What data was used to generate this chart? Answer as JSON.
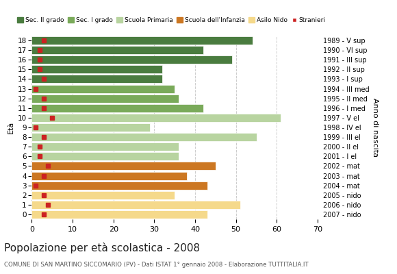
{
  "ages": [
    0,
    1,
    2,
    3,
    4,
    5,
    6,
    7,
    8,
    9,
    10,
    11,
    12,
    13,
    14,
    15,
    16,
    17,
    18
  ],
  "bar_values": [
    43,
    51,
    35,
    43,
    38,
    45,
    36,
    36,
    55,
    29,
    61,
    42,
    36,
    35,
    32,
    32,
    49,
    42,
    54
  ],
  "stranieri": [
    3,
    4,
    3,
    1,
    3,
    4,
    2,
    2,
    3,
    1,
    5,
    3,
    3,
    1,
    3,
    2,
    2,
    2,
    3
  ],
  "anno_nascita": [
    "2007 - nido",
    "2006 - nido",
    "2005 - nido",
    "2004 - mat",
    "2003 - mat",
    "2002 - mat",
    "2001 - I el",
    "2000 - II el",
    "1999 - III el",
    "1998 - IV el",
    "1997 - V el",
    "1996 - I med",
    "1995 - II med",
    "1994 - III med",
    "1993 - I sup",
    "1992 - II sup",
    "1991 - III sup",
    "1990 - VI sup",
    "1989 - V sup"
  ],
  "bar_colors": [
    "#f5d98b",
    "#f5d98b",
    "#f5d98b",
    "#cc7722",
    "#cc7722",
    "#cc7722",
    "#b8d4a0",
    "#b8d4a0",
    "#b8d4a0",
    "#b8d4a0",
    "#b8d4a0",
    "#7aaa5a",
    "#7aaa5a",
    "#7aaa5a",
    "#4a7c3f",
    "#4a7c3f",
    "#4a7c3f",
    "#4a7c3f",
    "#4a7c3f"
  ],
  "legend_labels": [
    "Sec. II grado",
    "Sec. I grado",
    "Scuola Primaria",
    "Scuola dell'Infanzia",
    "Asilo Nido",
    "Stranieri"
  ],
  "legend_colors": [
    "#4a7c3f",
    "#7aaa5a",
    "#b8d4a0",
    "#cc7722",
    "#f5d98b",
    "#cc2222"
  ],
  "title": "Popolazione per età scolastica - 2008",
  "subtitle": "COMUNE DI SAN MARTINO SICCOMARIO (PV) - Dati ISTAT 1° gennaio 2008 - Elaborazione TUTTITALIA.IT",
  "ylabel": "Età",
  "right_label": "Anno di nascita",
  "xlim": [
    0,
    70
  ],
  "xticks": [
    0,
    10,
    20,
    30,
    40,
    50,
    60,
    70
  ],
  "background_color": "#ffffff",
  "stranieri_color": "#cc2222",
  "grid_color": "#cccccc"
}
